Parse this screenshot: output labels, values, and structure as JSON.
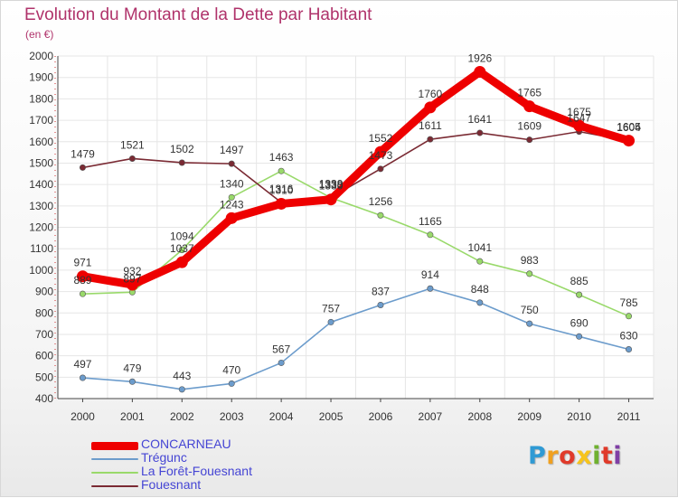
{
  "title": "Evolution du Montant de la Dette par Habitant",
  "subtitle": "(en €)",
  "logo": {
    "letters": [
      "P",
      "r",
      "o",
      "x",
      "i",
      "t",
      "i"
    ],
    "colors": [
      "#2f9ad4",
      "#f0a020",
      "#e03a2a",
      "#f7c41b",
      "#6fb12f",
      "#e03a2a",
      "#7f3fa5"
    ]
  },
  "chart_data": {
    "type": "line",
    "x": [
      "2000",
      "2001",
      "2002",
      "2003",
      "2004",
      "2005",
      "2006",
      "2007",
      "2008",
      "2009",
      "2010",
      "2011"
    ],
    "ylim": [
      400,
      2000
    ],
    "yticks": [
      400,
      500,
      600,
      700,
      800,
      900,
      1000,
      1100,
      1200,
      1300,
      1400,
      1500,
      1600,
      1700,
      1800,
      1900,
      2000
    ],
    "grid": true,
    "legend_position": "bottom-left",
    "series": [
      {
        "name": "CONCARNEAU",
        "values": [
          971,
          932,
          1037,
          1243,
          1310,
          1330,
          1552,
          1760,
          1926,
          1765,
          1675,
          1605
        ],
        "color": "#ee0000"
      },
      {
        "name": "Trégunc",
        "values": [
          497,
          479,
          443,
          470,
          567,
          757,
          837,
          914,
          848,
          750,
          690,
          630
        ],
        "color": "#6c9ccc"
      },
      {
        "name": "La Forêt-Fouesnant",
        "values": [
          889,
          897,
          1094,
          1340,
          1463,
          1338,
          1256,
          1165,
          1041,
          983,
          885,
          785
        ],
        "color": "#99d96a"
      },
      {
        "name": "Fouesnant",
        "values": [
          1479,
          1521,
          1502,
          1497,
          1316,
          1339,
          1473,
          1611,
          1641,
          1609,
          1647,
          1604
        ],
        "color": "#7a2a33"
      }
    ]
  }
}
